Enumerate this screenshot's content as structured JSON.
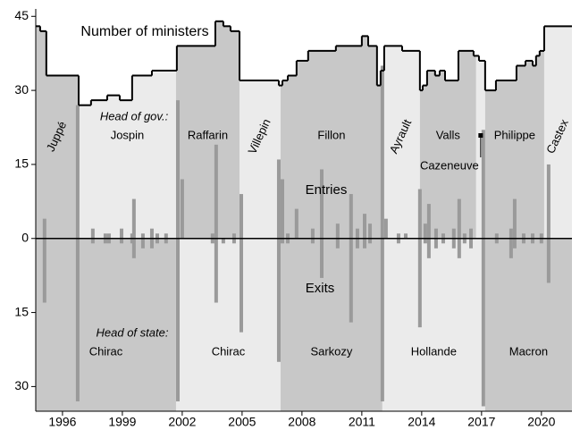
{
  "chart_data": {
    "type": "step-bars",
    "xlim": [
      1994.66,
      2021.53
    ],
    "xticks": [
      1996,
      1999,
      2002,
      2005,
      2008,
      2011,
      2014,
      2017,
      2020
    ],
    "ylim": [
      -35,
      46.5
    ],
    "yticks": [
      45,
      30,
      15,
      0,
      {
        "value": -15,
        "label": "15"
      },
      {
        "value": -30,
        "label": "30"
      }
    ],
    "shades": [
      "#c8c8c8",
      "#ebebeb"
    ],
    "line": {
      "name": "Number of ministers",
      "color": "#000000",
      "x": [
        1994.66,
        1994.88,
        1995.19,
        1996.81,
        1997.43,
        1998.24,
        1998.87,
        1999.49,
        2000.48,
        2001.73,
        2003.66,
        2004.06,
        2004.42,
        2004.87,
        2006.84,
        2007.02,
        2007.29,
        2007.73,
        2008.31,
        2009.7,
        2011.0,
        2011.32,
        2011.76,
        2011.94,
        2012.12,
        2013.02,
        2013.91,
        2014.05,
        2014.27,
        2014.67,
        2014.9,
        2015.17,
        2015.84,
        2016.6,
        2016.87,
        2017.18,
        2017.72,
        2018.75,
        2019.2,
        2019.56,
        2019.73,
        2019.91,
        2020.14
      ],
      "values": [
        43,
        42,
        33,
        27,
        28,
        29,
        28,
        33,
        34,
        39,
        44,
        43,
        42,
        32,
        31,
        32,
        33,
        36,
        38,
        39,
        41,
        39,
        31,
        34,
        39,
        38,
        30,
        31,
        34,
        33,
        34,
        32,
        38,
        37,
        36,
        30,
        32,
        35,
        36,
        35,
        37,
        38,
        43
      ]
    },
    "bars": {
      "entries_label": "Entries",
      "exits_label": "Exits",
      "color": "#9a9a9a",
      "x": [
        1995.1,
        1996.76,
        1997.52,
        1998.15,
        1998.33,
        1998.96,
        1999.49,
        1999.58,
        2000.03,
        2000.48,
        2000.75,
        2001.19,
        2001.78,
        2002.0,
        2003.52,
        2003.7,
        2004.06,
        2004.6,
        2004.96,
        2006.84,
        2007.02,
        2007.29,
        2007.73,
        2008.54,
        2008.99,
        2009.79,
        2010.46,
        2010.78,
        2011.14,
        2011.41,
        2012.03,
        2012.21,
        2012.84,
        2013.2,
        2013.91,
        2014.18,
        2014.36,
        2014.72,
        2015.08,
        2015.61,
        2015.88,
        2016.15,
        2016.47,
        2017.09,
        2017.76,
        2018.48,
        2018.66,
        2019.11,
        2019.56,
        2020.0,
        2020.36
      ],
      "entries": [
        4,
        27,
        2,
        1,
        1,
        2,
        1,
        8,
        1,
        2,
        1,
        1,
        28,
        12,
        1,
        19,
        0,
        1,
        9,
        16,
        12,
        1,
        6,
        2,
        14,
        3,
        9,
        2,
        5,
        3,
        35,
        4,
        1,
        1,
        10,
        3,
        7,
        2,
        1,
        2,
        8,
        1,
        2,
        22,
        1,
        2,
        8,
        1,
        1,
        1,
        15
      ],
      "exits": [
        -13,
        -33,
        -1,
        -1,
        -1,
        -1,
        -1,
        -4,
        -2,
        -2,
        -1,
        -1,
        -33,
        0,
        -1,
        -13,
        -1,
        -1,
        -19,
        -25,
        -1,
        -1,
        0,
        -1,
        -8,
        -2,
        -17,
        -2,
        -2,
        -1,
        -33,
        0,
        -1,
        0,
        -18,
        -1,
        -4,
        -2,
        -1,
        -2,
        -4,
        -1,
        -2,
        -34,
        -1,
        -4,
        -2,
        -1,
        -1,
        -1,
        -9
      ]
    },
    "governments": {
      "label": "Head of gov.:",
      "names": [
        "Juppé",
        "Jospin",
        "Raffarin",
        "Villepin",
        "Fillon",
        "Ayrault",
        "Valls",
        "Cazeneuve",
        "Philippe",
        "Castex"
      ],
      "starts": [
        1994.66,
        1996.81,
        2001.69,
        2004.87,
        2006.93,
        2012.03,
        2013.91,
        2016.73,
        2017.18,
        2020.14
      ]
    },
    "heads_of_state": {
      "label": "Head of state:",
      "names": [
        "Chirac",
        "Chirac",
        "Sarkozy",
        "Hollande",
        "Macron"
      ],
      "starts": [
        1994.66,
        2001.69,
        2006.93,
        2012.03,
        2017.18
      ]
    }
  }
}
